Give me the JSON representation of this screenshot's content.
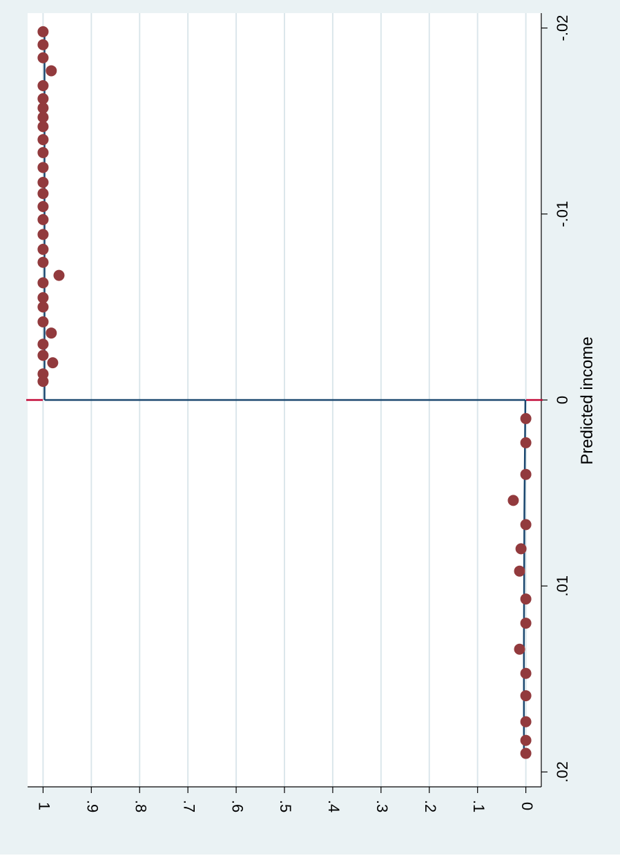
{
  "chart_data": {
    "type": "scatter",
    "orientation": "rotated-90",
    "title": "",
    "xlabel": "Predicted income",
    "ylabel": "",
    "x_ticks": [
      "-.02",
      "-.01",
      "0",
      ".01",
      ".02"
    ],
    "y_ticks": [
      "0",
      ".1",
      ".2",
      ".3",
      ".4",
      ".5",
      ".6",
      ".7",
      ".8",
      ".9",
      "1"
    ],
    "xlim": [
      -0.0208,
      0.0208
    ],
    "ylim": [
      -0.032,
      1.032
    ],
    "grid": true,
    "colors": {
      "outer_background": "#eaf2f4",
      "plot_background": "#ffffff",
      "grid": "#dbe6eb",
      "points": "#923a3d",
      "fit_line": "#1a476f",
      "cutoff_marker": "#c10534"
    },
    "cutoff": 0,
    "series": [
      {
        "kind": "points",
        "points": [
          {
            "x": -0.0198,
            "y": 1.0
          },
          {
            "x": -0.0191,
            "y": 1.0
          },
          {
            "x": -0.0184,
            "y": 1.0
          },
          {
            "x": -0.0177,
            "y": 0.983
          },
          {
            "x": -0.0169,
            "y": 1.0
          },
          {
            "x": -0.0162,
            "y": 1.0
          },
          {
            "x": -0.0157,
            "y": 1.0
          },
          {
            "x": -0.0152,
            "y": 1.0
          },
          {
            "x": -0.0147,
            "y": 1.0
          },
          {
            "x": -0.014,
            "y": 1.0
          },
          {
            "x": -0.0133,
            "y": 1.0
          },
          {
            "x": -0.0125,
            "y": 1.0
          },
          {
            "x": -0.0117,
            "y": 1.0
          },
          {
            "x": -0.0111,
            "y": 1.0
          },
          {
            "x": -0.0104,
            "y": 1.0
          },
          {
            "x": -0.0097,
            "y": 1.0
          },
          {
            "x": -0.0089,
            "y": 1.0
          },
          {
            "x": -0.0081,
            "y": 1.0
          },
          {
            "x": -0.0074,
            "y": 1.0
          },
          {
            "x": -0.0067,
            "y": 0.967
          },
          {
            "x": -0.0063,
            "y": 1.0
          },
          {
            "x": -0.0055,
            "y": 1.0
          },
          {
            "x": -0.005,
            "y": 1.0
          },
          {
            "x": -0.0042,
            "y": 1.0
          },
          {
            "x": -0.0036,
            "y": 0.983
          },
          {
            "x": -0.003,
            "y": 1.0
          },
          {
            "x": -0.0024,
            "y": 1.0
          },
          {
            "x": -0.002,
            "y": 0.98
          },
          {
            "x": -0.0014,
            "y": 1.0
          },
          {
            "x": -0.001,
            "y": 1.0
          },
          {
            "x": 0.001,
            "y": 0.0
          },
          {
            "x": 0.0023,
            "y": 0.0
          },
          {
            "x": 0.004,
            "y": 0.0
          },
          {
            "x": 0.0054,
            "y": 0.026
          },
          {
            "x": 0.0067,
            "y": 0.0
          },
          {
            "x": 0.008,
            "y": 0.01
          },
          {
            "x": 0.0092,
            "y": 0.013
          },
          {
            "x": 0.0107,
            "y": 0.0
          },
          {
            "x": 0.012,
            "y": 0.0
          },
          {
            "x": 0.0134,
            "y": 0.013
          },
          {
            "x": 0.0147,
            "y": 0.0
          },
          {
            "x": 0.0159,
            "y": 0.0
          },
          {
            "x": 0.0173,
            "y": 0.0
          },
          {
            "x": 0.0183,
            "y": 0.0
          },
          {
            "x": 0.019,
            "y": 0.0
          }
        ]
      },
      {
        "kind": "fit-line-left",
        "points": [
          {
            "x": -0.0198,
            "y": 0.997
          },
          {
            "x": -0.001,
            "y": 0.997
          },
          {
            "x": 0.0,
            "y": 0.997
          }
        ]
      },
      {
        "kind": "fit-line-right",
        "points": [
          {
            "x": 0.0,
            "y": 0.001
          },
          {
            "x": 0.006,
            "y": 0.003
          },
          {
            "x": 0.013,
            "y": 0.004
          },
          {
            "x": 0.019,
            "y": 0.004
          }
        ]
      }
    ]
  }
}
